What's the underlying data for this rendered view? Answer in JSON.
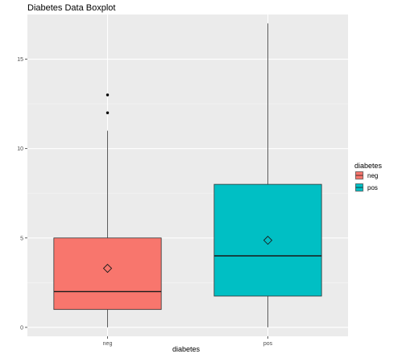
{
  "chart_data": {
    "type": "boxplot",
    "title": "Diabetes Data Boxplot",
    "xlabel": "diabetes",
    "ylabel": "",
    "ylim": [
      -0.5,
      17.5
    ],
    "yticks": [
      0,
      5,
      10,
      15
    ],
    "categories": [
      "neg",
      "pos"
    ],
    "grid": true,
    "legend": {
      "title": "diabetes",
      "placement": "right",
      "entries": [
        "neg",
        "pos"
      ]
    },
    "series": [
      {
        "category": "neg",
        "color": "#F8766D",
        "min": 0,
        "q1": 1,
        "median": 2,
        "q3": 5,
        "max": 11,
        "mean": 3.3,
        "outliers": [
          12,
          13
        ]
      },
      {
        "category": "pos",
        "color": "#00BFC4",
        "min": 0,
        "q1": 1.75,
        "median": 4,
        "q3": 8,
        "max": 17,
        "mean": 4.87,
        "outliers": []
      }
    ],
    "colors": {
      "panel": "#EBEBEB",
      "grid_major": "#FFFFFF",
      "grid_minor": "#F5F5F5",
      "box_outline": "#333333"
    }
  }
}
